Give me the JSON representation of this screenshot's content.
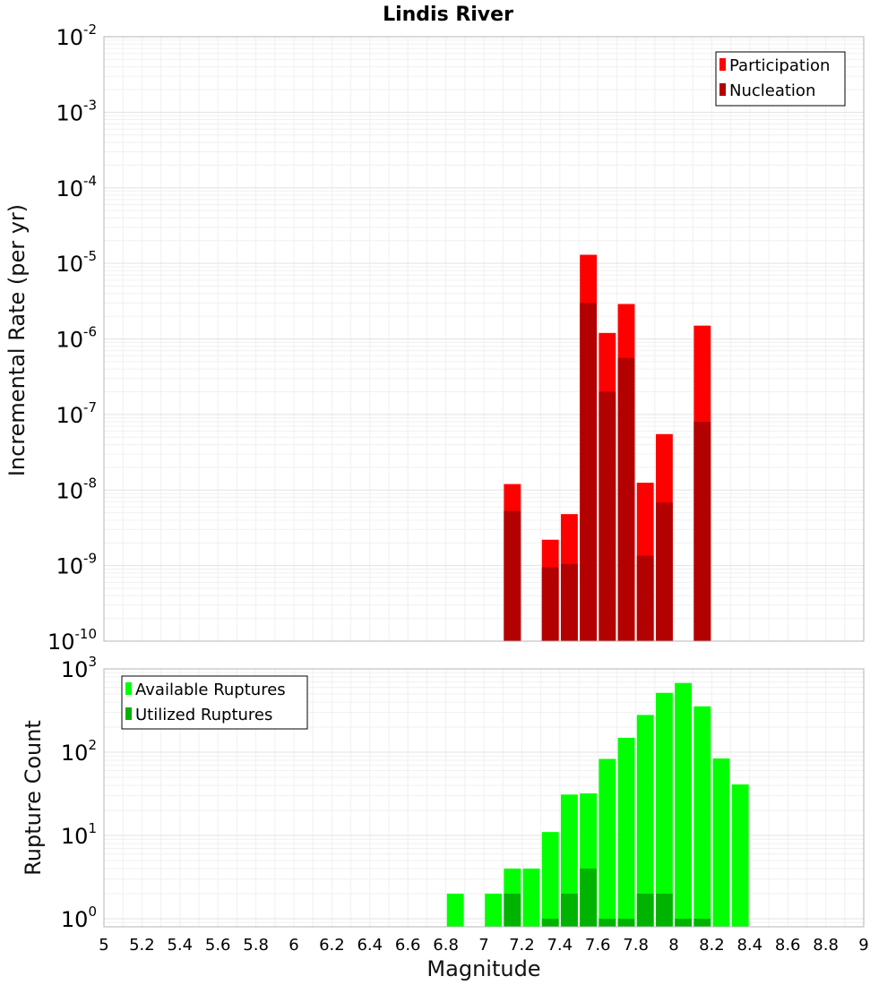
{
  "chart_data": [
    {
      "type": "bar",
      "title": "Lindis River",
      "ylabel": "Incremental Rate (per yr)",
      "xlabel": "",
      "yscale": "log",
      "ylim": [
        1e-10,
        0.01
      ],
      "xlim": [
        5,
        9
      ],
      "y_ticks": [
        {
          "base": "10",
          "exp": "-10",
          "value": 1e-10
        },
        {
          "base": "10",
          "exp": "-9",
          "value": 1e-09
        },
        {
          "base": "10",
          "exp": "-8",
          "value": 1e-08
        },
        {
          "base": "10",
          "exp": "-7",
          "value": 1e-07
        },
        {
          "base": "10",
          "exp": "-6",
          "value": 1e-06
        },
        {
          "base": "10",
          "exp": "-5",
          "value": 1e-05
        },
        {
          "base": "10",
          "exp": "-4",
          "value": 0.0001
        },
        {
          "base": "10",
          "exp": "-3",
          "value": 0.001
        },
        {
          "base": "10",
          "exp": "-2",
          "value": 0.01
        }
      ],
      "grid": true,
      "legend_position": "top-right",
      "series": [
        {
          "name": "Participation",
          "color": "#ff0000",
          "points": [
            {
              "x": 7.15,
              "y": 1.2e-08
            },
            {
              "x": 7.35,
              "y": 2.2e-09
            },
            {
              "x": 7.45,
              "y": 4.8e-09
            },
            {
              "x": 7.55,
              "y": 1.3e-05
            },
            {
              "x": 7.65,
              "y": 1.2e-06
            },
            {
              "x": 7.75,
              "y": 2.9e-06
            },
            {
              "x": 7.85,
              "y": 1.25e-08
            },
            {
              "x": 7.95,
              "y": 5.5e-08
            },
            {
              "x": 8.15,
              "y": 1.5e-06
            }
          ]
        },
        {
          "name": "Nucleation",
          "color": "#b30000",
          "points": [
            {
              "x": 7.15,
              "y": 5.3e-09
            },
            {
              "x": 7.35,
              "y": 9.5e-10
            },
            {
              "x": 7.45,
              "y": 1.05e-09
            },
            {
              "x": 7.55,
              "y": 3e-06
            },
            {
              "x": 7.65,
              "y": 2e-07
            },
            {
              "x": 7.75,
              "y": 5.6e-07
            },
            {
              "x": 7.85,
              "y": 1.35e-09
            },
            {
              "x": 7.95,
              "y": 6.8e-09
            },
            {
              "x": 8.15,
              "y": 8e-08
            }
          ]
        }
      ]
    },
    {
      "type": "bar",
      "title": "",
      "ylabel": "Rupture Count",
      "xlabel": "Magnitude",
      "yscale": "log",
      "ylim": [
        0.8,
        1000
      ],
      "xlim": [
        5,
        9
      ],
      "y_ticks": [
        {
          "base": "10",
          "exp": "0",
          "value": 1
        },
        {
          "base": "10",
          "exp": "1",
          "value": 10
        },
        {
          "base": "10",
          "exp": "2",
          "value": 100
        },
        {
          "base": "10",
          "exp": "3",
          "value": 1000
        }
      ],
      "x_ticks": [
        "5",
        "5.2",
        "5.4",
        "5.6",
        "5.8",
        "6",
        "6.2",
        "6.4",
        "6.6",
        "6.8",
        "7",
        "7.2",
        "7.4",
        "7.6",
        "7.8",
        "8",
        "8.2",
        "8.4",
        "8.6",
        "8.8",
        "9"
      ],
      "grid": true,
      "legend_position": "top-left",
      "series": [
        {
          "name": "Available Ruptures",
          "color": "#00ff00",
          "points": [
            {
              "x": 6.85,
              "y": 2
            },
            {
              "x": 7.05,
              "y": 2
            },
            {
              "x": 7.15,
              "y": 4
            },
            {
              "x": 7.25,
              "y": 4
            },
            {
              "x": 7.35,
              "y": 11
            },
            {
              "x": 7.45,
              "y": 31
            },
            {
              "x": 7.55,
              "y": 32
            },
            {
              "x": 7.65,
              "y": 83
            },
            {
              "x": 7.75,
              "y": 149
            },
            {
              "x": 7.85,
              "y": 280
            },
            {
              "x": 7.95,
              "y": 516
            },
            {
              "x": 8.05,
              "y": 678
            },
            {
              "x": 8.15,
              "y": 355
            },
            {
              "x": 8.25,
              "y": 84
            },
            {
              "x": 8.35,
              "y": 41
            }
          ]
        },
        {
          "name": "Utilized Ruptures",
          "color": "#00b300",
          "points": [
            {
              "x": 7.15,
              "y": 2
            },
            {
              "x": 7.35,
              "y": 1
            },
            {
              "x": 7.45,
              "y": 2
            },
            {
              "x": 7.55,
              "y": 4
            },
            {
              "x": 7.65,
              "y": 1
            },
            {
              "x": 7.75,
              "y": 1
            },
            {
              "x": 7.85,
              "y": 2
            },
            {
              "x": 7.95,
              "y": 2
            },
            {
              "x": 8.05,
              "y": 1
            },
            {
              "x": 8.15,
              "y": 1
            }
          ]
        }
      ]
    }
  ]
}
